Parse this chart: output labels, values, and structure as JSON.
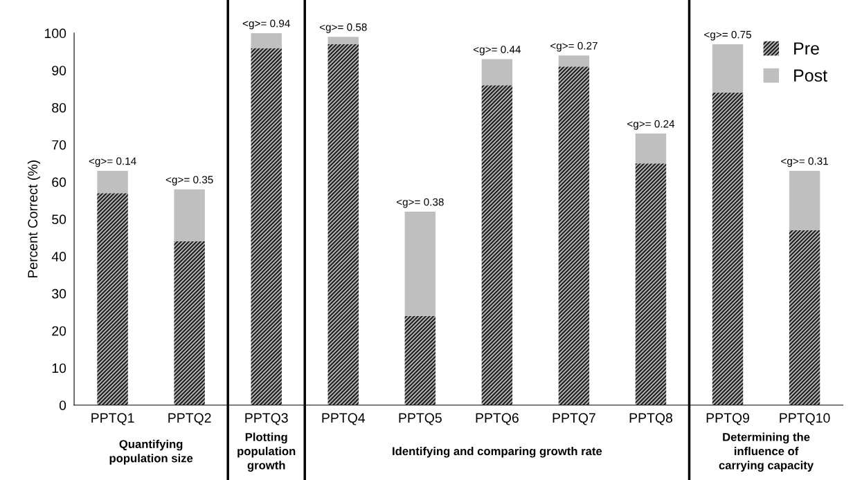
{
  "chart_data": {
    "type": "bar",
    "stacked": true,
    "ylabel": "Percent Correct (%)",
    "categories": [
      "PPTQ1",
      "PPTQ2",
      "PPTQ3",
      "PPTQ4",
      "PPTQ5",
      "PPTQ6",
      "PPTQ7",
      "PPTQ8",
      "PPTQ9",
      "PPTQ10"
    ],
    "series": [
      {
        "name": "Pre",
        "color": "#bfbfbf",
        "values": [
          57,
          44,
          96,
          97,
          24,
          86,
          91,
          65,
          84,
          47
        ]
      },
      {
        "name": "Post",
        "color": "#bfbfbf",
        "values": [
          6,
          14,
          4,
          2,
          28,
          7,
          3,
          8,
          13,
          16
        ],
        "value_labels": [
          "<g>= 0.14",
          "<g>= 0.35",
          "<g>= 0.94",
          "<g>= 0.58",
          "<g>= 0.38",
          "<g>= 0.44",
          "<g>= 0.27",
          "<g>= 0.24",
          "<g>= 0.75",
          "<g>= 0.31"
        ]
      }
    ],
    "ylim": [
      0,
      100
    ],
    "yticks": [
      0,
      10,
      20,
      30,
      40,
      50,
      60,
      70,
      80,
      90,
      100
    ],
    "annotations": [
      "Quantifying\npopulation size",
      "Plotting\npopulation\ngrowth",
      "Identifying and comparing growth rate",
      "Determining the\ninfluence of\ncarrying capacity"
    ],
    "legend": "top right",
    "grid": false
  }
}
